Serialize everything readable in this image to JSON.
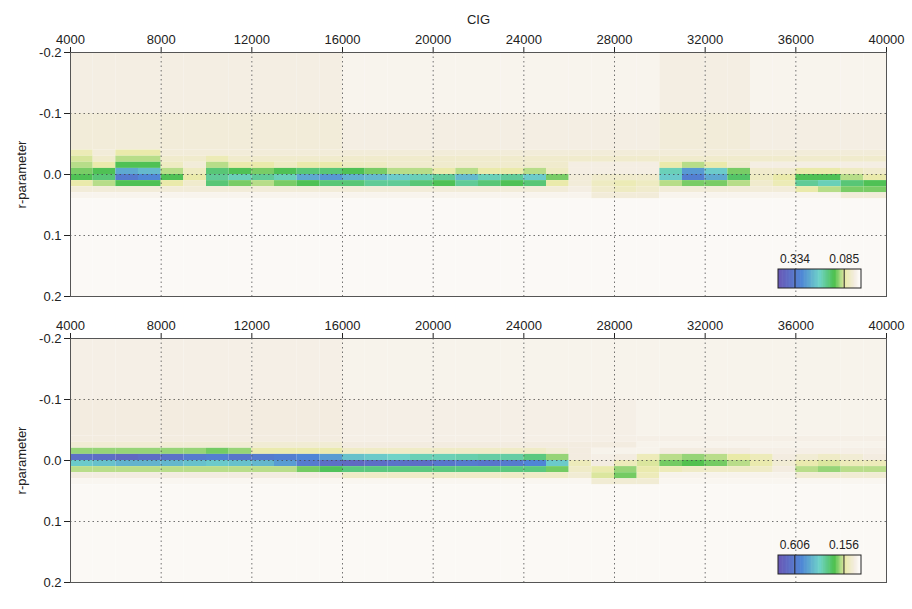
{
  "chart_data": [
    {
      "type": "heatmap",
      "xlabel": "CIG",
      "ylabel": "r-parameter",
      "xlim": [
        4000,
        40000
      ],
      "ylim": [
        -0.2,
        0.2
      ],
      "xticks": [
        4000,
        8000,
        12000,
        16000,
        20000,
        24000,
        28000,
        32000,
        36000,
        40000
      ],
      "yticks": [
        -0.2,
        -0.1,
        {
          "value": 0,
          "label": "0.0"
        },
        0.1,
        0.2
      ],
      "grid": true,
      "x_bins": [
        4000,
        5000,
        6000,
        7000,
        8000,
        9000,
        10000,
        11000,
        12000,
        13000,
        14000,
        15000,
        16000,
        17000,
        18000,
        19000,
        20000,
        21000,
        22000,
        23000,
        24000,
        25000,
        26000,
        27000,
        28000,
        29000,
        30000,
        31000,
        32000,
        33000,
        34000,
        35000,
        36000,
        37000,
        38000,
        39000,
        40000
      ],
      "y_bins": [
        -0.2,
        -0.1,
        -0.04,
        -0.03,
        -0.02,
        -0.01,
        0,
        0.01,
        0.02,
        0.03,
        0.04,
        0.2
      ],
      "values": [
        [
          0.03,
          0.03,
          0.03,
          0.03,
          0.03,
          0.03,
          0.03,
          0.03,
          0.03,
          0.03,
          0.03,
          0.03,
          0.02,
          0.02,
          0.02,
          0.02,
          0.02,
          0.02,
          0.02,
          0.02,
          0.02,
          0.02,
          0.02,
          0.02,
          0.02,
          0.02,
          0.03,
          0.03,
          0.03,
          0.03,
          0.02,
          0.02,
          0.02,
          0.02,
          0.02,
          0.02
        ],
        [
          0.04,
          0.04,
          0.04,
          0.04,
          0.04,
          0.04,
          0.04,
          0.04,
          0.04,
          0.04,
          0.04,
          0.04,
          0.03,
          0.03,
          0.03,
          0.03,
          0.03,
          0.03,
          0.03,
          0.03,
          0.03,
          0.03,
          0.03,
          0.03,
          0.03,
          0.03,
          0.04,
          0.04,
          0.04,
          0.04,
          0.03,
          0.03,
          0.03,
          0.03,
          0.03,
          0.03
        ],
        [
          0.07,
          0.04,
          0.08,
          0.08,
          0.04,
          0.04,
          0.04,
          0.04,
          0.04,
          0.04,
          0.04,
          0.04,
          0.04,
          0.04,
          0.04,
          0.04,
          0.04,
          0.04,
          0.04,
          0.04,
          0.04,
          0.04,
          0.04,
          0.04,
          0.04,
          0.04,
          0.04,
          0.04,
          0.04,
          0.04,
          0.04,
          0.04,
          0.04,
          0.04,
          0.04,
          0.04
        ],
        [
          0.09,
          0.05,
          0.1,
          0.1,
          0.05,
          0.05,
          0.07,
          0.05,
          0.05,
          0.05,
          0.05,
          0.05,
          0.05,
          0.05,
          0.05,
          0.05,
          0.05,
          0.05,
          0.05,
          0.05,
          0.05,
          0.05,
          0.05,
          0.05,
          0.05,
          0.05,
          0.05,
          0.05,
          0.05,
          0.05,
          0.05,
          0.05,
          0.05,
          0.05,
          0.05,
          0.05
        ],
        [
          0.1,
          0.08,
          0.14,
          0.14,
          0.06,
          0.04,
          0.1,
          0.08,
          0.08,
          0.06,
          0.08,
          0.08,
          0.06,
          0.06,
          0.05,
          0.05,
          0.05,
          0.05,
          0.05,
          0.05,
          0.05,
          0.05,
          0.03,
          0.03,
          0.03,
          0.03,
          0.08,
          0.1,
          0.08,
          0.05,
          0.03,
          0.03,
          0.03,
          0.03,
          0.03,
          0.03
        ],
        [
          0.12,
          0.14,
          0.26,
          0.24,
          0.1,
          0.06,
          0.16,
          0.14,
          0.12,
          0.14,
          0.16,
          0.16,
          0.14,
          0.12,
          0.1,
          0.1,
          0.08,
          0.1,
          0.08,
          0.08,
          0.1,
          0.06,
          0.03,
          0.03,
          0.03,
          0.03,
          0.2,
          0.28,
          0.22,
          0.12,
          0.05,
          0.05,
          0.08,
          0.08,
          0.06,
          0.05
        ],
        [
          0.14,
          0.16,
          0.33,
          0.3,
          0.14,
          0.08,
          0.18,
          0.2,
          0.18,
          0.2,
          0.26,
          0.28,
          0.25,
          0.24,
          0.22,
          0.2,
          0.18,
          0.24,
          0.2,
          0.18,
          0.22,
          0.12,
          0.04,
          0.05,
          0.05,
          0.05,
          0.22,
          0.32,
          0.26,
          0.15,
          0.06,
          0.08,
          0.14,
          0.14,
          0.1,
          0.08
        ],
        [
          0.08,
          0.1,
          0.14,
          0.14,
          0.08,
          0.05,
          0.16,
          0.12,
          0.1,
          0.12,
          0.14,
          0.16,
          0.16,
          0.18,
          0.18,
          0.16,
          0.14,
          0.18,
          0.16,
          0.14,
          0.16,
          0.08,
          0.04,
          0.06,
          0.07,
          0.06,
          0.1,
          0.12,
          0.12,
          0.1,
          0.05,
          0.07,
          0.18,
          0.2,
          0.16,
          0.14
        ],
        [
          0.04,
          0.04,
          0.04,
          0.04,
          0.04,
          0.04,
          0.04,
          0.04,
          0.04,
          0.04,
          0.04,
          0.04,
          0.04,
          0.04,
          0.04,
          0.04,
          0.04,
          0.04,
          0.04,
          0.04,
          0.04,
          0.04,
          0.03,
          0.05,
          0.06,
          0.05,
          0.04,
          0.04,
          0.04,
          0.04,
          0.04,
          0.04,
          0.08,
          0.1,
          0.12,
          0.12
        ],
        [
          0.02,
          0.02,
          0.02,
          0.02,
          0.02,
          0.02,
          0.02,
          0.02,
          0.02,
          0.02,
          0.02,
          0.02,
          0.02,
          0.02,
          0.02,
          0.02,
          0.02,
          0.02,
          0.02,
          0.02,
          0.02,
          0.02,
          0.02,
          0.04,
          0.04,
          0.04,
          0.02,
          0.02,
          0.02,
          0.02,
          0.02,
          0.02,
          0.02,
          0.02,
          0.04,
          0.04
        ],
        [
          0.01,
          0.01,
          0.01,
          0.01,
          0.01,
          0.01,
          0.01,
          0.01,
          0.01,
          0.01,
          0.01,
          0.01,
          0.01,
          0.01,
          0.01,
          0.01,
          0.01,
          0.01,
          0.01,
          0.01,
          0.01,
          0.01,
          0.01,
          0.01,
          0.01,
          0.01,
          0.01,
          0.01,
          0.01,
          0.01,
          0.01,
          0.01,
          0.01,
          0.01,
          0.01,
          0.01
        ]
      ],
      "colorbar": {
        "range": [
          0.42,
          0
        ],
        "ticks": [
          0.334,
          0.085
        ]
      }
    },
    {
      "type": "heatmap",
      "ylabel": "r-parameter",
      "xlim": [
        4000,
        40000
      ],
      "ylim": [
        -0.2,
        0.2
      ],
      "xticks": [
        4000,
        8000,
        12000,
        16000,
        20000,
        24000,
        28000,
        32000,
        36000,
        40000
      ],
      "yticks": [
        -0.2,
        -0.1,
        {
          "value": 0,
          "label": "0.0"
        },
        0.1,
        0.2
      ],
      "grid": true,
      "x_bins": [
        4000,
        5000,
        6000,
        7000,
        8000,
        9000,
        10000,
        11000,
        12000,
        13000,
        14000,
        15000,
        16000,
        17000,
        18000,
        19000,
        20000,
        21000,
        22000,
        23000,
        24000,
        25000,
        26000,
        27000,
        28000,
        29000,
        30000,
        31000,
        32000,
        33000,
        34000,
        35000,
        36000,
        37000,
        38000,
        39000,
        40000
      ],
      "y_bins": [
        -0.2,
        -0.1,
        -0.04,
        -0.03,
        -0.02,
        -0.01,
        0,
        0.01,
        0.02,
        0.03,
        0.04,
        0.2
      ],
      "values": [
        [
          0.05,
          0.05,
          0.05,
          0.05,
          0.05,
          0.05,
          0.05,
          0.05,
          0.05,
          0.05,
          0.05,
          0.05,
          0.04,
          0.04,
          0.04,
          0.04,
          0.04,
          0.04,
          0.04,
          0.04,
          0.04,
          0.04,
          0.04,
          0.04,
          0.04,
          0.04,
          0.04,
          0.04,
          0.04,
          0.04,
          0.04,
          0.04,
          0.04,
          0.04,
          0.04,
          0.04
        ],
        [
          0.06,
          0.06,
          0.06,
          0.06,
          0.06,
          0.06,
          0.06,
          0.06,
          0.06,
          0.06,
          0.06,
          0.06,
          0.05,
          0.05,
          0.05,
          0.05,
          0.05,
          0.05,
          0.05,
          0.05,
          0.05,
          0.05,
          0.05,
          0.05,
          0.05,
          0.04,
          0.04,
          0.04,
          0.04,
          0.04,
          0.04,
          0.04,
          0.04,
          0.04,
          0.04,
          0.04
        ],
        [
          0.06,
          0.06,
          0.06,
          0.06,
          0.06,
          0.06,
          0.06,
          0.06,
          0.06,
          0.06,
          0.06,
          0.06,
          0.05,
          0.05,
          0.05,
          0.05,
          0.05,
          0.05,
          0.05,
          0.05,
          0.05,
          0.05,
          0.05,
          0.05,
          0.05,
          0.05,
          0.05,
          0.05,
          0.05,
          0.05,
          0.05,
          0.05,
          0.05,
          0.05,
          0.05,
          0.05
        ],
        [
          0.08,
          0.08,
          0.08,
          0.08,
          0.08,
          0.08,
          0.08,
          0.08,
          0.08,
          0.08,
          0.08,
          0.08,
          0.06,
          0.06,
          0.06,
          0.06,
          0.06,
          0.06,
          0.06,
          0.06,
          0.06,
          0.06,
          0.06,
          0.06,
          0.06,
          0.04,
          0.04,
          0.04,
          0.04,
          0.04,
          0.04,
          0.04,
          0.04,
          0.04,
          0.04,
          0.04
        ],
        [
          0.2,
          0.2,
          0.2,
          0.2,
          0.2,
          0.2,
          0.22,
          0.2,
          0.14,
          0.14,
          0.14,
          0.14,
          0.1,
          0.1,
          0.1,
          0.1,
          0.1,
          0.1,
          0.1,
          0.1,
          0.1,
          0.08,
          0.06,
          0.04,
          0.04,
          0.04,
          0.06,
          0.06,
          0.06,
          0.06,
          0.05,
          0.05,
          0.05,
          0.05,
          0.05,
          0.05
        ],
        [
          0.65,
          0.66,
          0.68,
          0.66,
          0.64,
          0.6,
          0.58,
          0.62,
          0.6,
          0.58,
          0.55,
          0.5,
          0.42,
          0.4,
          0.38,
          0.36,
          0.36,
          0.35,
          0.34,
          0.34,
          0.3,
          0.2,
          0.06,
          0.05,
          0.06,
          0.12,
          0.18,
          0.2,
          0.18,
          0.15,
          0.12,
          0.06,
          0.08,
          0.1,
          0.08,
          0.06
        ],
        [
          0.4,
          0.42,
          0.45,
          0.45,
          0.44,
          0.42,
          0.4,
          0.42,
          0.44,
          0.5,
          0.6,
          0.65,
          0.68,
          0.66,
          0.64,
          0.66,
          0.62,
          0.6,
          0.62,
          0.6,
          0.55,
          0.4,
          0.12,
          0.06,
          0.12,
          0.16,
          0.22,
          0.24,
          0.22,
          0.18,
          0.14,
          0.08,
          0.14,
          0.16,
          0.12,
          0.12
        ],
        [
          0.18,
          0.18,
          0.18,
          0.18,
          0.18,
          0.18,
          0.18,
          0.18,
          0.18,
          0.18,
          0.22,
          0.26,
          0.3,
          0.3,
          0.3,
          0.3,
          0.3,
          0.3,
          0.3,
          0.3,
          0.3,
          0.22,
          0.1,
          0.14,
          0.2,
          0.14,
          0.12,
          0.1,
          0.1,
          0.1,
          0.1,
          0.06,
          0.18,
          0.2,
          0.18,
          0.18
        ],
        [
          0.06,
          0.06,
          0.06,
          0.06,
          0.06,
          0.06,
          0.06,
          0.06,
          0.06,
          0.06,
          0.06,
          0.06,
          0.1,
          0.1,
          0.1,
          0.1,
          0.1,
          0.1,
          0.1,
          0.1,
          0.1,
          0.1,
          0.08,
          0.16,
          0.22,
          0.12,
          0.04,
          0.04,
          0.04,
          0.04,
          0.04,
          0.04,
          0.08,
          0.08,
          0.08,
          0.08
        ],
        [
          0.03,
          0.03,
          0.03,
          0.03,
          0.03,
          0.03,
          0.03,
          0.03,
          0.03,
          0.03,
          0.03,
          0.03,
          0.03,
          0.03,
          0.03,
          0.03,
          0.03,
          0.03,
          0.03,
          0.03,
          0.03,
          0.03,
          0.03,
          0.08,
          0.08,
          0.08,
          0.03,
          0.03,
          0.03,
          0.03,
          0.03,
          0.03,
          0.03,
          0.03,
          0.03,
          0.03
        ],
        [
          0.02,
          0.02,
          0.02,
          0.02,
          0.02,
          0.02,
          0.02,
          0.02,
          0.02,
          0.02,
          0.02,
          0.02,
          0.02,
          0.02,
          0.02,
          0.02,
          0.02,
          0.02,
          0.02,
          0.02,
          0.02,
          0.02,
          0.02,
          0.02,
          0.02,
          0.02,
          0.02,
          0.02,
          0.02,
          0.02,
          0.02,
          0.02,
          0.02,
          0.02,
          0.02,
          0.02
        ]
      ],
      "colorbar": {
        "range": [
          0.76,
          0
        ],
        "ticks": [
          0.606,
          0.156
        ]
      }
    }
  ]
}
